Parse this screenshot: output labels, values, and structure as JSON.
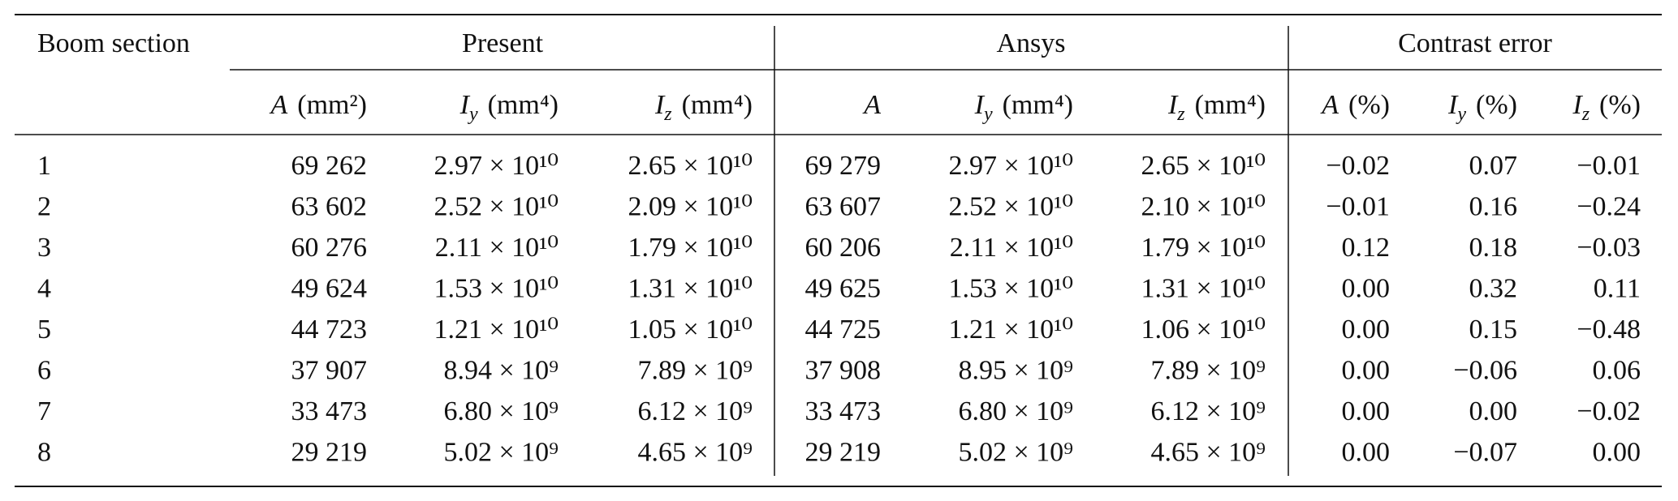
{
  "table": {
    "label_header": "Boom section",
    "groups": [
      {
        "title": "Present",
        "headers": [
          {
            "symbol": "A",
            "unit": "(mm²)"
          },
          {
            "symbol": "I",
            "sub": "y",
            "unit": "(mm⁴)"
          },
          {
            "symbol": "I",
            "sub": "z",
            "unit": "(mm⁴)"
          }
        ]
      },
      {
        "title": "Ansys",
        "headers": [
          {
            "symbol": "A"
          },
          {
            "symbol": "I",
            "sub": "y",
            "unit": "(mm⁴)"
          },
          {
            "symbol": "I",
            "sub": "z",
            "unit": "(mm⁴)"
          }
        ]
      },
      {
        "title": "Contrast error",
        "headers": [
          {
            "symbol": "A",
            "unit": "(%)"
          },
          {
            "symbol": "I",
            "sub": "y",
            "unit": "(%)"
          },
          {
            "symbol": "I",
            "sub": "z",
            "unit": "(%)"
          }
        ]
      }
    ],
    "rows": [
      [
        "1",
        "69 262",
        "2.97 × 10¹⁰",
        "2.65 × 10¹⁰",
        "69 279",
        "2.97 × 10¹⁰",
        "2.65 × 10¹⁰",
        "−0.02",
        "0.07",
        "−0.01"
      ],
      [
        "2",
        "63 602",
        "2.52 × 10¹⁰",
        "2.09 × 10¹⁰",
        "63 607",
        "2.52 × 10¹⁰",
        "2.10 × 10¹⁰",
        "−0.01",
        "0.16",
        "−0.24"
      ],
      [
        "3",
        "60 276",
        "2.11 × 10¹⁰",
        "1.79 × 10¹⁰",
        "60 206",
        "2.11 × 10¹⁰",
        "1.79 × 10¹⁰",
        "0.12",
        "0.18",
        "−0.03"
      ],
      [
        "4",
        "49 624",
        "1.53 × 10¹⁰",
        "1.31 × 10¹⁰",
        "49 625",
        "1.53 × 10¹⁰",
        "1.31 × 10¹⁰",
        "0.00",
        "0.32",
        "0.11"
      ],
      [
        "5",
        "44 723",
        "1.21 × 10¹⁰",
        "1.05 × 10¹⁰",
        "44 725",
        "1.21 × 10¹⁰",
        "1.06 × 10¹⁰",
        "0.00",
        "0.15",
        "−0.48"
      ],
      [
        "6",
        "37 907",
        "8.94 × 10⁹",
        "7.89 × 10⁹",
        "37 908",
        "8.95 × 10⁹",
        "7.89 × 10⁹",
        "0.00",
        "−0.06",
        "0.06"
      ],
      [
        "7",
        "33 473",
        "6.80 × 10⁹",
        "6.12 × 10⁹",
        "33 473",
        "6.80 × 10⁹",
        "6.12 × 10⁹",
        "0.00",
        "0.00",
        "−0.02"
      ],
      [
        "8",
        "29 219",
        "5.02 × 10⁹",
        "4.65 × 10⁹",
        "29 219",
        "5.02 × 10⁹",
        "4.65 × 10⁹",
        "0.00",
        "−0.07",
        "0.00"
      ]
    ]
  }
}
